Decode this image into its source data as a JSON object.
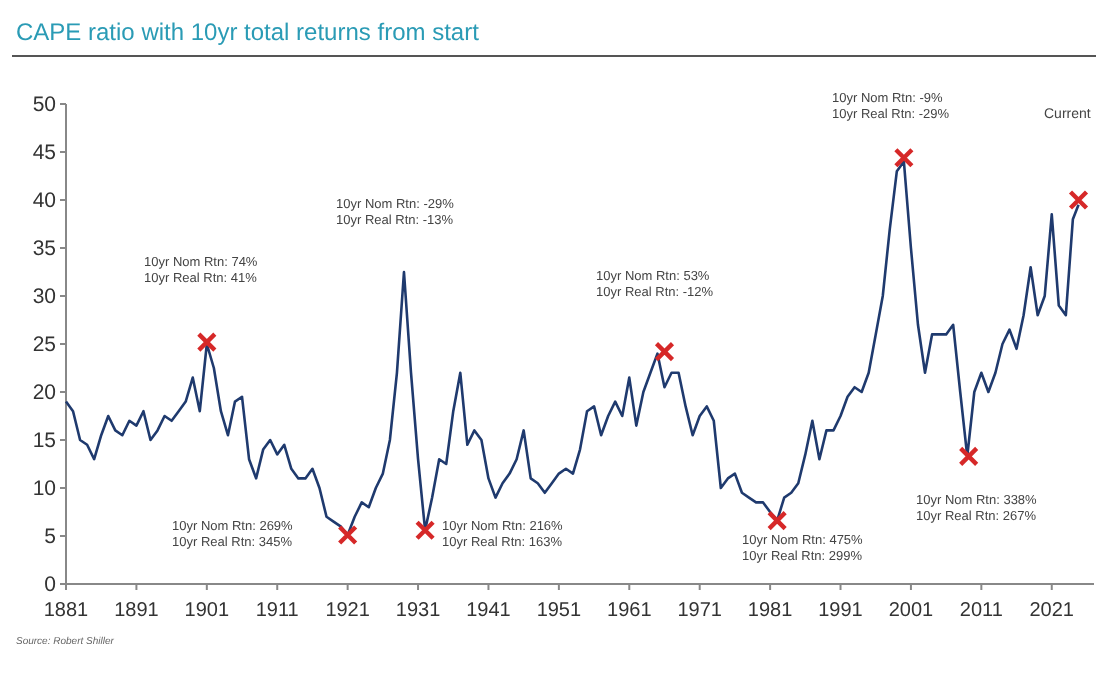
{
  "chart_data": {
    "type": "line",
    "title": "CAPE ratio with 10yr total returns from start",
    "xlim": [
      1881,
      2027
    ],
    "xticks": [
      1881,
      1891,
      1901,
      1911,
      1921,
      1931,
      1941,
      1951,
      1961,
      1971,
      1981,
      1991,
      2001,
      2011,
      2021
    ],
    "ylim": [
      0,
      50
    ],
    "yticks": [
      0,
      5,
      10,
      15,
      20,
      25,
      30,
      35,
      40,
      45,
      50
    ],
    "grid": false,
    "series": [
      {
        "color": "#1f3a6e",
        "marker": "none",
        "x": [
          1881,
          1882,
          1883,
          1884,
          1885,
          1886,
          1887,
          1888,
          1889,
          1890,
          1891,
          1892,
          1893,
          1894,
          1895,
          1896,
          1897,
          1898,
          1899,
          1900,
          1901,
          1902,
          1903,
          1904,
          1905,
          1906,
          1907,
          1908,
          1909,
          1910,
          1911,
          1912,
          1913,
          1914,
          1915,
          1916,
          1917,
          1918,
          1919,
          1920,
          1921,
          1922,
          1923,
          1924,
          1925,
          1926,
          1927,
          1928,
          1929,
          1930,
          1931,
          1932,
          1933,
          1934,
          1935,
          1936,
          1937,
          1938,
          1939,
          1940,
          1941,
          1942,
          1943,
          1944,
          1945,
          1946,
          1947,
          1948,
          1949,
          1950,
          1951,
          1952,
          1953,
          1954,
          1955,
          1956,
          1957,
          1958,
          1959,
          1960,
          1961,
          1962,
          1963,
          1964,
          1965,
          1966,
          1967,
          1968,
          1969,
          1970,
          1971,
          1972,
          1973,
          1974,
          1975,
          1976,
          1977,
          1978,
          1979,
          1980,
          1981,
          1982,
          1983,
          1984,
          1985,
          1986,
          1987,
          1988,
          1989,
          1990,
          1991,
          1992,
          1993,
          1994,
          1995,
          1996,
          1997,
          1998,
          1999,
          2000,
          2001,
          2002,
          2003,
          2004,
          2005,
          2006,
          2007,
          2008,
          2009,
          2010,
          2011,
          2012,
          2013,
          2014,
          2015,
          2016,
          2017,
          2018,
          2019,
          2020,
          2021,
          2022,
          2023,
          2024,
          2024.8
        ],
        "values": [
          19,
          18,
          15,
          14.5,
          13,
          15.5,
          17.5,
          16,
          15.5,
          17,
          16.5,
          18,
          15,
          16,
          17.5,
          17,
          18,
          19,
          21.5,
          18,
          25,
          22.5,
          18,
          15.5,
          19,
          19.5,
          13,
          11,
          14,
          15,
          13.5,
          14.5,
          12,
          11,
          11,
          12,
          10,
          7,
          6.5,
          6,
          5.1,
          7,
          8.5,
          8,
          10,
          11.5,
          15,
          22,
          32.5,
          22,
          13,
          5.6,
          9,
          13,
          12.5,
          18,
          22,
          14.5,
          16,
          15,
          11,
          9,
          10.5,
          11.5,
          13,
          16,
          11,
          10.5,
          9.5,
          10.5,
          11.5,
          12,
          11.5,
          14,
          18,
          18.5,
          15.5,
          17.5,
          19,
          17.5,
          21.5,
          16.5,
          20,
          22,
          24,
          20.5,
          22,
          22,
          18.5,
          15.5,
          17.5,
          18.5,
          17,
          10,
          11,
          11.5,
          9.5,
          9,
          8.5,
          8.5,
          7.5,
          6.6,
          9,
          9.5,
          10.5,
          13.5,
          17,
          13,
          16,
          16,
          17.5,
          19.5,
          20.5,
          20,
          22,
          26,
          30,
          37,
          43,
          44,
          35,
          27,
          22,
          26,
          26,
          26,
          27,
          20,
          13.3,
          20,
          22,
          20,
          22,
          25,
          26.5,
          24.5,
          28,
          33,
          28,
          30,
          38.5,
          29,
          28,
          38,
          39.5
        ]
      },
      {
        "type": "scatter",
        "color": "#d62828",
        "marker": "cross",
        "x": [
          1901,
          1921,
          1932,
          1966,
          1982,
          2000,
          2009.2,
          2024.8
        ],
        "values": [
          25.2,
          5.1,
          5.6,
          24.2,
          6.6,
          44.4,
          13.3,
          40
        ]
      }
    ],
    "annotations": [
      "10yr Nom Rtn: 74%\n10yr Real Rtn: 41%",
      "10yr Nom Rtn: 269%\n10yr Real Rtn: 345%",
      "10yr Nom Rtn: -29%\n10yr Real Rtn: -13%",
      "10yr Nom Rtn: 216%\n10yr Real Rtn: 163%",
      "10yr Nom Rtn: 53%\n10yr Real Rtn: -12%",
      "10yr Nom Rtn: 475%\n10yr Real Rtn: 299%",
      "10yr Nom Rtn: -9%\n10yr Real Rtn: -29%",
      "10yr Nom Rtn: 338%\n10yr Real Rtn: 267%",
      "Current",
      "Source: Robert Shiller"
    ]
  }
}
